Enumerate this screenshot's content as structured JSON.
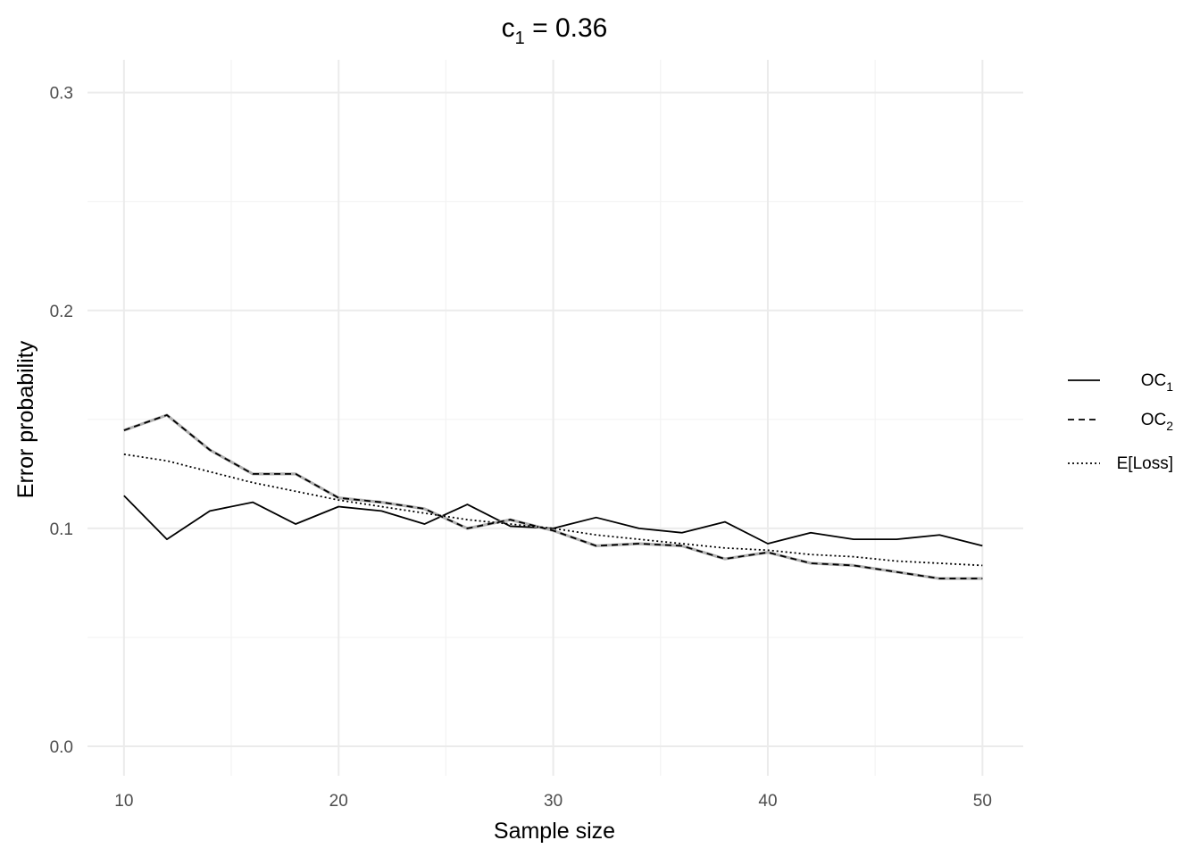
{
  "chart_data": {
    "type": "line",
    "title": "c",
    "title_subscript": "1",
    "title_suffix": " = 0.36",
    "xlabel": "Sample size",
    "ylabel": "Error probability",
    "xlim": [
      8.3,
      51.9
    ],
    "ylim": [
      -0.0135,
      0.315
    ],
    "x_ticks": [
      10,
      20,
      30,
      40,
      50
    ],
    "x_tick_labels": [
      "10",
      "20",
      "30",
      "40",
      "50"
    ],
    "y_ticks": [
      0.0,
      0.1,
      0.2,
      0.3
    ],
    "y_tick_labels": [
      "0.0",
      "0.1",
      "0.2",
      "0.3"
    ],
    "grid": true,
    "legend_position": "right",
    "x": [
      10,
      12,
      14,
      16,
      18,
      20,
      22,
      24,
      26,
      28,
      30,
      32,
      34,
      36,
      38,
      40,
      42,
      44,
      46,
      48,
      50
    ],
    "series": [
      {
        "name": "OC",
        "name_subscript": "1",
        "linetype": "solid",
        "values": [
          0.115,
          0.095,
          0.108,
          0.112,
          0.102,
          0.11,
          0.108,
          0.102,
          0.111,
          0.101,
          0.1,
          0.105,
          0.1,
          0.098,
          0.103,
          0.093,
          0.098,
          0.095,
          0.095,
          0.097,
          0.092
        ]
      },
      {
        "name": "OC",
        "name_subscript": "2",
        "linetype": "dashed",
        "values": [
          0.145,
          0.152,
          0.136,
          0.125,
          0.125,
          0.114,
          0.112,
          0.109,
          0.1,
          0.104,
          0.099,
          0.092,
          0.093,
          0.092,
          0.086,
          0.089,
          0.084,
          0.083,
          0.08,
          0.077,
          0.077
        ]
      },
      {
        "name": "E[Loss]",
        "name_subscript": "",
        "linetype": "dotted",
        "values": [
          0.134,
          0.131,
          0.126,
          0.121,
          0.117,
          0.113,
          0.11,
          0.107,
          0.104,
          0.102,
          0.1,
          0.097,
          0.095,
          0.093,
          0.091,
          0.09,
          0.088,
          0.087,
          0.085,
          0.084,
          0.083
        ]
      }
    ]
  }
}
